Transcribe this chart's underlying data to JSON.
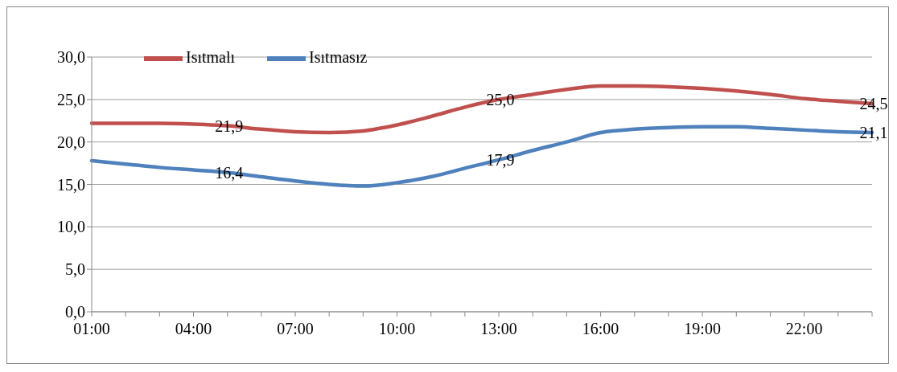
{
  "chart_data": {
    "type": "line",
    "categories": [
      "01:00",
      null,
      null,
      "04:00",
      null,
      null,
      "07:00",
      null,
      null,
      "10:00",
      null,
      null,
      "13:00",
      null,
      null,
      "16:00",
      null,
      null,
      "19:00",
      null,
      null,
      "22:00",
      null,
      null
    ],
    "series": [
      {
        "name": "Isıtmalı",
        "color": "#c0504d",
        "values": [
          22.2,
          22.2,
          22.2,
          22.1,
          21.9,
          21.5,
          21.2,
          21.1,
          21.3,
          22.0,
          23.0,
          24.1,
          25.0,
          25.6,
          26.2,
          26.6,
          26.6,
          26.5,
          26.3,
          26.0,
          25.6,
          25.1,
          24.8,
          24.5
        ],
        "value_labels": [
          null,
          null,
          null,
          null,
          "21,9",
          null,
          null,
          null,
          null,
          null,
          null,
          null,
          "25,0",
          null,
          null,
          null,
          null,
          null,
          null,
          null,
          null,
          null,
          null,
          "24,5"
        ]
      },
      {
        "name": "Isıtmasız",
        "color": "#4f81bd",
        "values": [
          17.8,
          17.4,
          17.0,
          16.7,
          16.4,
          15.9,
          15.4,
          15.0,
          14.8,
          15.2,
          15.9,
          16.9,
          17.9,
          19.0,
          20.0,
          21.1,
          21.5,
          21.7,
          21.8,
          21.8,
          21.6,
          21.4,
          21.2,
          21.1
        ],
        "value_labels": [
          null,
          null,
          null,
          null,
          "16,4",
          null,
          null,
          null,
          null,
          null,
          null,
          null,
          "17,9",
          null,
          null,
          null,
          null,
          null,
          null,
          null,
          null,
          null,
          null,
          "21,1"
        ]
      }
    ],
    "ylim": [
      0,
      30
    ],
    "yticks": [
      {
        "value": 0,
        "label": "0,0"
      },
      {
        "value": 5,
        "label": "5,0"
      },
      {
        "value": 10,
        "label": "10,0"
      },
      {
        "value": 15,
        "label": "15,0"
      },
      {
        "value": 20,
        "label": "20,0"
      },
      {
        "value": 25,
        "label": "25,0"
      },
      {
        "value": 30,
        "label": "30,0"
      }
    ],
    "grid": "y",
    "legend": "top left",
    "marker": "none",
    "line_style": "solid"
  }
}
